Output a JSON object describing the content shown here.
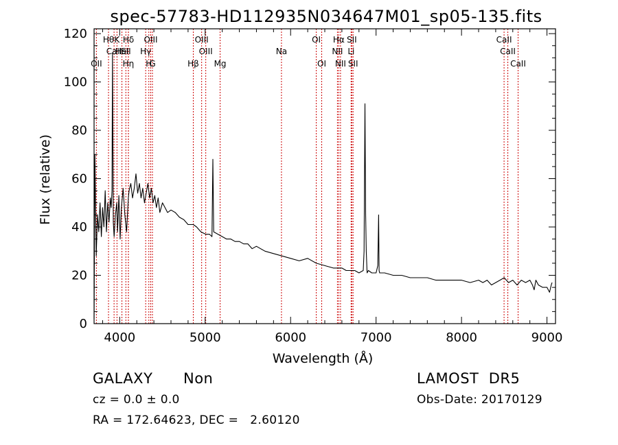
{
  "chart_data": {
    "type": "line",
    "title": "spec-57783-HD112935N034647M01_sp05-135.fits",
    "xlabel": "Wavelength (Å)",
    "ylabel": "Flux (relative)",
    "xlim": [
      3700,
      9100
    ],
    "ylim": [
      0,
      122
    ],
    "xticks": [
      4000,
      5000,
      6000,
      7000,
      8000,
      9000
    ],
    "yticks": [
      0,
      20,
      40,
      60,
      80,
      100,
      120
    ],
    "grid": false,
    "line_color": "#000000",
    "marker_color": "#cc0000",
    "series": [
      {
        "x": [
          3700,
          3710,
          3725,
          3740,
          3755,
          3770,
          3785,
          3800,
          3815,
          3830,
          3845,
          3860,
          3875,
          3890,
          3900,
          3910,
          3915,
          3925,
          3935,
          3950,
          3965,
          3975,
          3990,
          4005,
          4020,
          4040,
          4060,
          4080,
          4101,
          4110,
          4130,
          4150,
          4170,
          4190,
          4210,
          4230,
          4250,
          4270,
          4290,
          4310,
          4330,
          4350,
          4370,
          4390,
          4410,
          4430,
          4450,
          4470,
          4500,
          4530,
          4560,
          4600,
          4650,
          4700,
          4750,
          4800,
          4861,
          4900,
          4950,
          5007,
          5050,
          5080,
          5090,
          5100,
          5150,
          5200,
          5250,
          5300,
          5350,
          5400,
          5450,
          5500,
          5550,
          5600,
          5700,
          5800,
          5900,
          6000,
          6100,
          6200,
          6300,
          6400,
          6500,
          6550,
          6600,
          6650,
          6700,
          6750,
          6800,
          6850,
          6860,
          6870,
          6878,
          6885,
          6895,
          6910,
          6950,
          7000,
          7020,
          7030,
          7036,
          7042,
          7050,
          7060,
          7100,
          7200,
          7300,
          7400,
          7500,
          7600,
          7700,
          7800,
          7900,
          8000,
          8100,
          8200,
          8250,
          8300,
          8350,
          8400,
          8450,
          8500,
          8550,
          8600,
          8650,
          8700,
          8750,
          8800,
          8830,
          8850,
          8870,
          8900,
          8950,
          9000,
          9030,
          9050,
          9060
        ],
        "y": [
          2,
          70,
          28,
          45,
          38,
          50,
          36,
          48,
          40,
          55,
          38,
          50,
          42,
          52,
          48,
          55,
          112,
          42,
          36,
          45,
          50,
          38,
          53,
          35,
          48,
          56,
          45,
          38,
          52,
          55,
          58,
          52,
          56,
          62,
          54,
          58,
          52,
          56,
          50,
          54,
          58,
          52,
          56,
          50,
          53,
          48,
          52,
          46,
          50,
          48,
          46,
          47,
          46,
          44,
          43,
          41,
          41,
          40,
          38,
          37,
          37,
          36,
          68,
          38,
          37,
          36,
          35,
          35,
          34,
          34,
          33,
          33,
          31,
          32,
          30,
          29,
          28,
          27,
          26,
          27,
          25,
          24,
          23,
          23,
          23,
          22,
          22,
          22,
          21,
          22,
          30,
          91,
          45,
          30,
          21,
          22,
          21,
          21,
          24,
          45,
          22,
          21,
          21,
          21,
          21,
          20,
          20,
          19,
          19,
          19,
          18,
          18,
          18,
          18,
          17,
          18,
          17,
          18,
          16,
          17,
          18,
          19,
          17,
          18,
          16,
          18,
          17,
          18,
          16,
          14,
          18,
          16,
          15,
          15,
          13,
          16,
          17
        ]
      }
    ],
    "lines": [
      {
        "x": 3727,
        "label": "OII",
        "row": 3
      },
      {
        "x": 3869,
        "label": "Hθ",
        "row": 1
      },
      {
        "x": 3934,
        "label": "CaII",
        "row": 2
      },
      {
        "x": 3968,
        "label": "K",
        "row": 1
      },
      {
        "x": 4026,
        "label": "HeI",
        "row": 2
      },
      {
        "x": 4101,
        "label": "Hη",
        "row": 3
      },
      {
        "x": 4102,
        "label": "Hδ",
        "row": 1
      },
      {
        "x": 4072,
        "label": "SII",
        "row": 2
      },
      {
        "x": 4341,
        "label": "H",
        "row": 3
      },
      {
        "x": 4363,
        "label": "OIII",
        "row": 1
      },
      {
        "x": 4304,
        "label": "Hγ",
        "row": 2
      },
      {
        "x": 4383,
        "label": "G",
        "row": 3
      },
      {
        "x": 4861,
        "label": "Hβ",
        "row": 3
      },
      {
        "x": 4959,
        "label": "OIII",
        "row": 1
      },
      {
        "x": 5007,
        "label": "OIII",
        "row": 2
      },
      {
        "x": 5175,
        "label": "Mg",
        "row": 3
      },
      {
        "x": 5893,
        "label": "Na",
        "row": 2
      },
      {
        "x": 6300,
        "label": "OI",
        "row": 1
      },
      {
        "x": 6364,
        "label": "OI",
        "row": 3
      },
      {
        "x": 6548,
        "label": "NII",
        "row": 2
      },
      {
        "x": 6563,
        "label": "Hα",
        "row": 1
      },
      {
        "x": 6584,
        "label": "NII",
        "row": 3
      },
      {
        "x": 6708,
        "label": "Li",
        "row": 2
      },
      {
        "x": 6716,
        "label": "SII",
        "row": 1
      },
      {
        "x": 6731,
        "label": "SII",
        "row": 3
      },
      {
        "x": 8498,
        "label": "CaII",
        "row": 1
      },
      {
        "x": 8542,
        "label": "CaII",
        "row": 2
      },
      {
        "x": 8662,
        "label": "CaII",
        "row": 3
      }
    ]
  },
  "info": {
    "object_class": "GALAXY",
    "subclass": "Non",
    "survey": "LAMOST  DR5",
    "cz": "cz = 0.0 ± 0.0",
    "obs_date": "Obs-Date: 20170129",
    "radec": "RA = 172.64623, DEC =   2.60120"
  }
}
